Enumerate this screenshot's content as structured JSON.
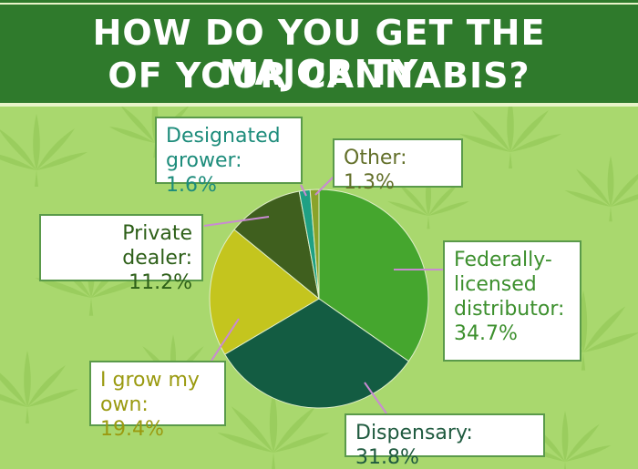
{
  "header": {
    "title_line1": "HOW DO YOU GET THE MAJORITY",
    "title_line2": "OF YOUR CANNABIS?"
  },
  "chart_data": {
    "type": "pie",
    "title": "HOW DO YOU GET THE MAJORITY OF YOUR CANNABIS?",
    "slices": [
      {
        "label": "Federally-licensed distributor",
        "value": 34.7,
        "color": "#45a62e"
      },
      {
        "label": "Dispensary",
        "value": 31.8,
        "color": "#135c42"
      },
      {
        "label": "I grow my own",
        "value": 19.4,
        "color": "#c4c51e"
      },
      {
        "label": "Private dealer",
        "value": 11.2,
        "color": "#3f5f1e"
      },
      {
        "label": "Designated grower",
        "value": 1.6,
        "color": "#1fa084"
      },
      {
        "label": "Other",
        "value": 1.3,
        "color": "#8aa32a"
      }
    ]
  },
  "callouts": {
    "grower": {
      "line1": "Designated",
      "line2": "grower: 1.6%"
    },
    "other": {
      "line1": "Other: 1.3%"
    },
    "dealer": {
      "line1": "Private dealer:",
      "line2": "11.2%"
    },
    "federal": {
      "line1": "Federally-",
      "line2": "licensed",
      "line3": "distributor:",
      "line4": "34.7%"
    },
    "grow": {
      "line1": "I grow my",
      "line2": "own: 19.4%"
    },
    "dispensary": {
      "line1": "Dispensary: 31.8%"
    }
  },
  "colors": {
    "background": "#a9d86e",
    "header": "#2f7a2c",
    "leaf": "#98cc5c"
  }
}
